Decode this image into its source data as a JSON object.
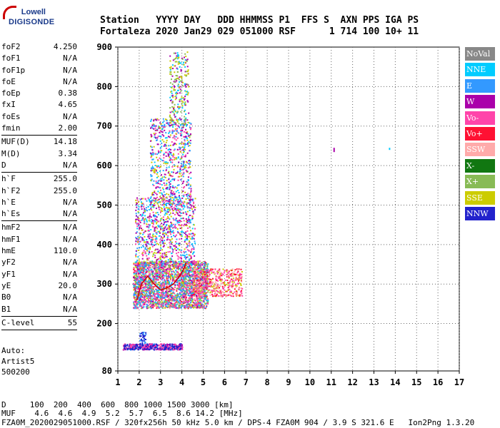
{
  "logo": {
    "line1": "Lowell",
    "line2": "DIGISONDE"
  },
  "header": {
    "row1": "Station   YYYY DAY   DDD HHMMSS P1  FFS S  AXN PPS IGA PS",
    "row2": "Fortaleza 2020 Jan29 029 051000 RSF      1 714 100 10+ 11"
  },
  "params": [
    {
      "k": "foF2",
      "v": "4.250"
    },
    {
      "k": "foF1",
      "v": "N/A"
    },
    {
      "k": "foF1p",
      "v": "N/A"
    },
    {
      "k": "foE",
      "v": "N/A"
    },
    {
      "k": "foEp",
      "v": "0.38"
    },
    {
      "k": "fxI",
      "v": "4.65"
    },
    {
      "k": "foEs",
      "v": "N/A"
    },
    {
      "k": "fmin",
      "v": "2.00"
    },
    {
      "sep": true
    },
    {
      "k": "MUF(D)",
      "v": "14.18"
    },
    {
      "k": "M(D)",
      "v": "3.34"
    },
    {
      "k": "D",
      "v": "N/A"
    },
    {
      "sep": true
    },
    {
      "k": "h`F",
      "v": "255.0"
    },
    {
      "k": "h`F2",
      "v": "255.0"
    },
    {
      "k": "h`E",
      "v": "N/A"
    },
    {
      "k": "h`Es",
      "v": "N/A"
    },
    {
      "sep": true
    },
    {
      "k": "hmF2",
      "v": "N/A"
    },
    {
      "k": "hmF1",
      "v": "N/A"
    },
    {
      "k": "hmE",
      "v": "110.0"
    },
    {
      "k": "yF2",
      "v": "N/A"
    },
    {
      "k": "yF1",
      "v": "N/A"
    },
    {
      "k": "yE",
      "v": "20.0"
    },
    {
      "k": "B0",
      "v": "N/A"
    },
    {
      "k": "B1",
      "v": "N/A"
    },
    {
      "sep": true
    },
    {
      "k": "C-level",
      "v": "55"
    },
    {
      "sep": true
    }
  ],
  "auto": [
    "Auto:",
    "Artist5",
    "500200"
  ],
  "legend": [
    {
      "label": "NoVal",
      "color": "#888888"
    },
    {
      "label": "NNE",
      "color": "#00ccff"
    },
    {
      "label": "E",
      "color": "#3399ff"
    },
    {
      "label": "W",
      "color": "#aa00aa"
    },
    {
      "label": "Vo-",
      "color": "#ff44aa"
    },
    {
      "label": "Vo+",
      "color": "#ff1133"
    },
    {
      "label": "SSW",
      "color": "#ffaaaa"
    },
    {
      "label": "X-",
      "color": "#117711"
    },
    {
      "label": "X+",
      "color": "#88bb55"
    },
    {
      "label": "SSE",
      "color": "#cccc00"
    },
    {
      "label": "NNW",
      "color": "#2222cc"
    }
  ],
  "footer": {
    "row1": "D     100  200  400  600  800 1000 1500 3000 [km]",
    "row2": "MUF    4.6  4.6  4.9  5.2  5.7  6.5  8.6 14.2 [MHz]",
    "row3": "FZA0M_2020029051000.RSF / 320fx256h 50 kHz 5.0 km / DPS-4 FZA0M 904 / 3.9 S 321.6 E   Ion2Png 1.3.20"
  },
  "chart_data": {
    "type": "scatter",
    "xlim": [
      1,
      17
    ],
    "ylim": [
      80,
      900
    ],
    "xticks": [
      "1",
      "2",
      "3",
      "4",
      "5",
      "6",
      "7",
      "8",
      "9",
      "10",
      "11",
      "12",
      "13",
      "14",
      "15",
      "16",
      "17"
    ],
    "yticks": [
      "80",
      "200",
      "300",
      "400",
      "500",
      "600",
      "700",
      "800",
      "900"
    ],
    "grid": true,
    "trace": {
      "color": "#cc0000",
      "x": [
        1.9,
        2.1,
        2.4,
        2.7,
        3.0,
        3.3,
        3.6,
        3.9,
        4.1,
        4.2
      ],
      "y": [
        260,
        300,
        320,
        300,
        285,
        290,
        300,
        320,
        340,
        355
      ]
    }
  }
}
